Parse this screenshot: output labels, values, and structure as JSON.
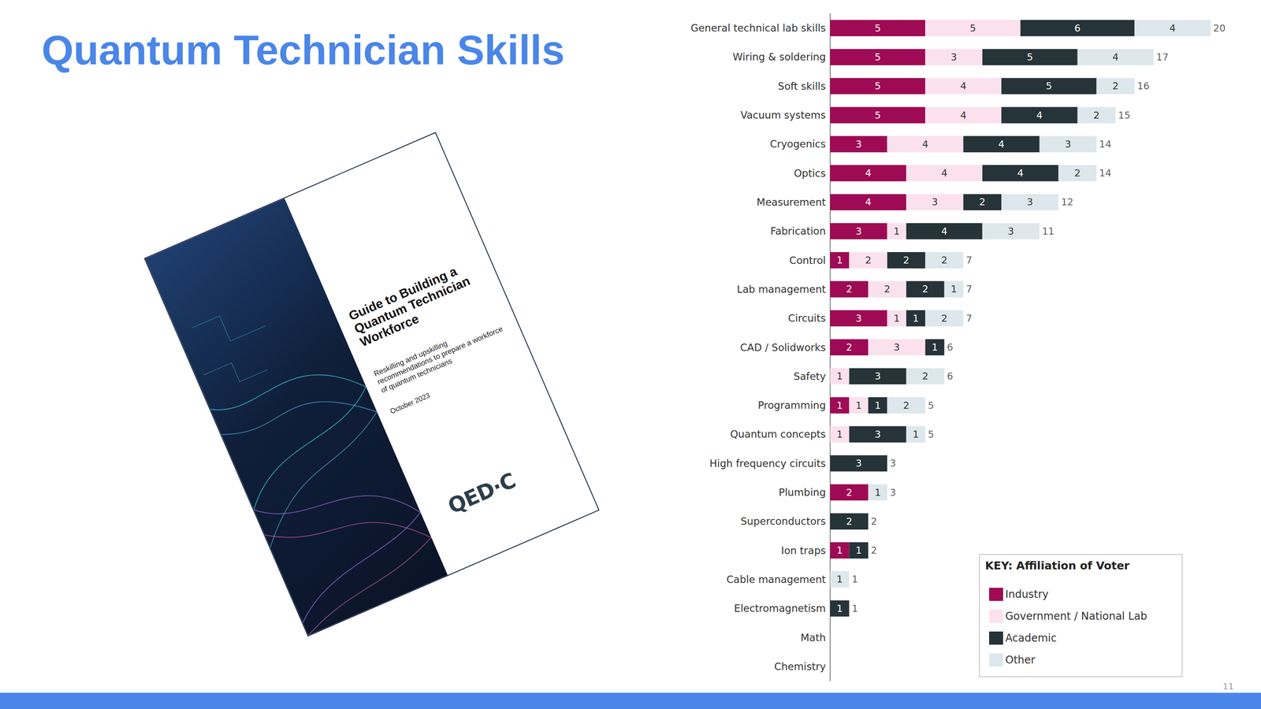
{
  "title": "Quantum Technician Skills",
  "page_number": "11",
  "document": {
    "title": "Guide to Building a Quantum Technician Workforce",
    "subtitle": "Reskilling and upskilling recommendations to prepare a workforce of quantum technicians",
    "date": "October 2023",
    "logo": "QED·C"
  },
  "chart_data": {
    "type": "bar",
    "orientation": "horizontal",
    "stacked": true,
    "data_labels": true,
    "tick_labels": "y",
    "grid": false,
    "legend": "bottom-right",
    "legend_title": "KEY: Affiliation of Voter",
    "xlim": [
      0,
      20
    ],
    "categories": [
      "General technical lab skills",
      "Wiring & soldering",
      "Soft skills",
      "Vacuum systems",
      "Cryogenics",
      "Optics",
      "Measurement",
      "Fabrication",
      "Control",
      "Lab management",
      "Circuits",
      "CAD / Solidworks",
      "Safety",
      "Programming",
      "Quantum concepts",
      "High frequency circuits",
      "Plumbing",
      "Superconductors",
      "Ion traps",
      "Cable management",
      "Electromagnetism",
      "Math",
      "Chemistry"
    ],
    "series": [
      {
        "name": "Industry",
        "color": "#9e0b54",
        "values": [
          5,
          5,
          5,
          5,
          3,
          4,
          4,
          3,
          1,
          2,
          3,
          2,
          0,
          1,
          0,
          0,
          2,
          0,
          1,
          0,
          0,
          0,
          0
        ]
      },
      {
        "name": "Government / National Lab",
        "color": "#fbe1ed",
        "values": [
          5,
          3,
          4,
          4,
          4,
          4,
          3,
          1,
          2,
          2,
          1,
          3,
          1,
          1,
          1,
          0,
          0,
          0,
          0,
          0,
          0,
          0,
          0
        ]
      },
      {
        "name": "Academic",
        "color": "#263338",
        "values": [
          6,
          5,
          5,
          4,
          4,
          4,
          2,
          4,
          2,
          2,
          1,
          1,
          3,
          1,
          3,
          3,
          0,
          2,
          1,
          0,
          1,
          0,
          0
        ]
      },
      {
        "name": "Other",
        "color": "#dde7ec",
        "values": [
          4,
          4,
          2,
          2,
          3,
          2,
          3,
          3,
          2,
          1,
          2,
          0,
          2,
          2,
          1,
          0,
          1,
          0,
          0,
          1,
          0,
          0,
          0
        ]
      }
    ],
    "totals": [
      20,
      17,
      16,
      15,
      14,
      14,
      12,
      11,
      7,
      7,
      7,
      6,
      6,
      5,
      5,
      3,
      3,
      2,
      2,
      1,
      1,
      null,
      null
    ]
  }
}
